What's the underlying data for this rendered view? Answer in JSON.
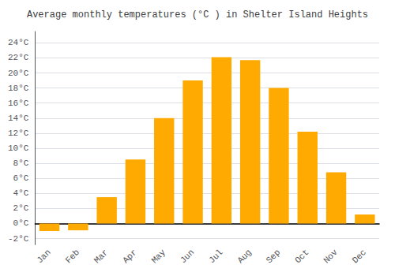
{
  "chart_data": {
    "type": "bar",
    "title": "Average monthly temperatures (°C ) in Shelter Island Heights",
    "categories": [
      "Jan",
      "Feb",
      "Mar",
      "Apr",
      "May",
      "Jun",
      "Jul",
      "Aug",
      "Sep",
      "Oct",
      "Nov",
      "Dec"
    ],
    "values": [
      -1.0,
      -0.9,
      3.5,
      8.5,
      14.0,
      19.0,
      22.1,
      21.7,
      18.0,
      12.2,
      6.8,
      1.2
    ],
    "color": "#FFAA00",
    "ylim": [
      -2.8,
      25.5
    ],
    "yticks": [
      {
        "value": -2,
        "label": "-2°C"
      },
      {
        "value": 0,
        "label": "0°C"
      },
      {
        "value": 2,
        "label": "2°C"
      },
      {
        "value": 4,
        "label": "4°C"
      },
      {
        "value": 6,
        "label": "6°C"
      },
      {
        "value": 8,
        "label": "8°C"
      },
      {
        "value": 10,
        "label": "10°C"
      },
      {
        "value": 12,
        "label": "12°C"
      },
      {
        "value": 14,
        "label": "14°C"
      },
      {
        "value": 16,
        "label": "16°C"
      },
      {
        "value": 18,
        "label": "18°C"
      },
      {
        "value": 20,
        "label": "20°C"
      },
      {
        "value": 22,
        "label": "22°C"
      },
      {
        "value": 24,
        "label": "24°C"
      }
    ],
    "grid": true
  }
}
